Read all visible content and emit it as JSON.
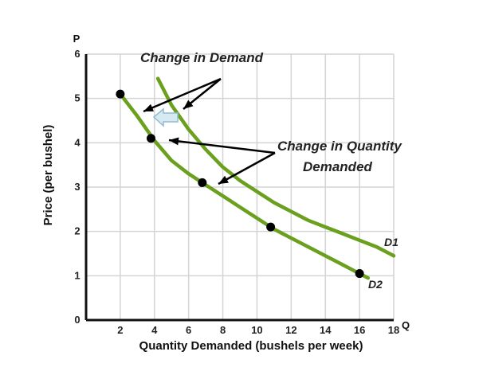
{
  "chart_data": {
    "type": "line",
    "xlabel": "Quantity Demanded (bushels per week)",
    "ylabel": "Price (per bushel)",
    "x_axis_letter": "Q",
    "y_axis_letter": "P",
    "xlim": [
      0,
      18
    ],
    "ylim": [
      0,
      6
    ],
    "xticks": [
      2,
      4,
      6,
      8,
      10,
      12,
      14,
      16,
      18
    ],
    "yticks": [
      0,
      1,
      2,
      3,
      4,
      5,
      6
    ],
    "grid": true,
    "series": [
      {
        "name": "D1",
        "color": "#6aa01e",
        "x": [
          4.2,
          5.0,
          6.0,
          7.0,
          8.0,
          9.0,
          10.0,
          11.0,
          12.0,
          13.0,
          14.0,
          15.0,
          16.0,
          17.0,
          18.0
        ],
        "y": [
          5.45,
          4.85,
          4.3,
          3.85,
          3.45,
          3.15,
          2.9,
          2.65,
          2.45,
          2.25,
          2.1,
          1.95,
          1.8,
          1.65,
          1.45
        ]
      },
      {
        "name": "D2",
        "color": "#6aa01e",
        "x": [
          2.0,
          3.0,
          4.0,
          5.0,
          6.0,
          7.0,
          8.0,
          9.0,
          10.0,
          11.0,
          12.0,
          13.0,
          14.0,
          15.0,
          16.0,
          16.5
        ],
        "y": [
          5.1,
          4.6,
          4.05,
          3.6,
          3.3,
          3.05,
          2.8,
          2.55,
          2.3,
          2.05,
          1.85,
          1.65,
          1.45,
          1.25,
          1.05,
          0.95
        ]
      }
    ],
    "points": [
      {
        "x": 2.0,
        "y": 5.1
      },
      {
        "x": 3.8,
        "y": 4.1
      },
      {
        "x": 6.8,
        "y": 3.1
      },
      {
        "x": 10.8,
        "y": 2.1
      },
      {
        "x": 16.0,
        "y": 1.05
      }
    ],
    "annotations": {
      "change_in_demand": "Change in Demand",
      "change_in_qd_line1": "Change in Quantity",
      "change_in_qd_line2": "Demanded"
    },
    "shift_arrow_color": "#a9cfe0"
  }
}
